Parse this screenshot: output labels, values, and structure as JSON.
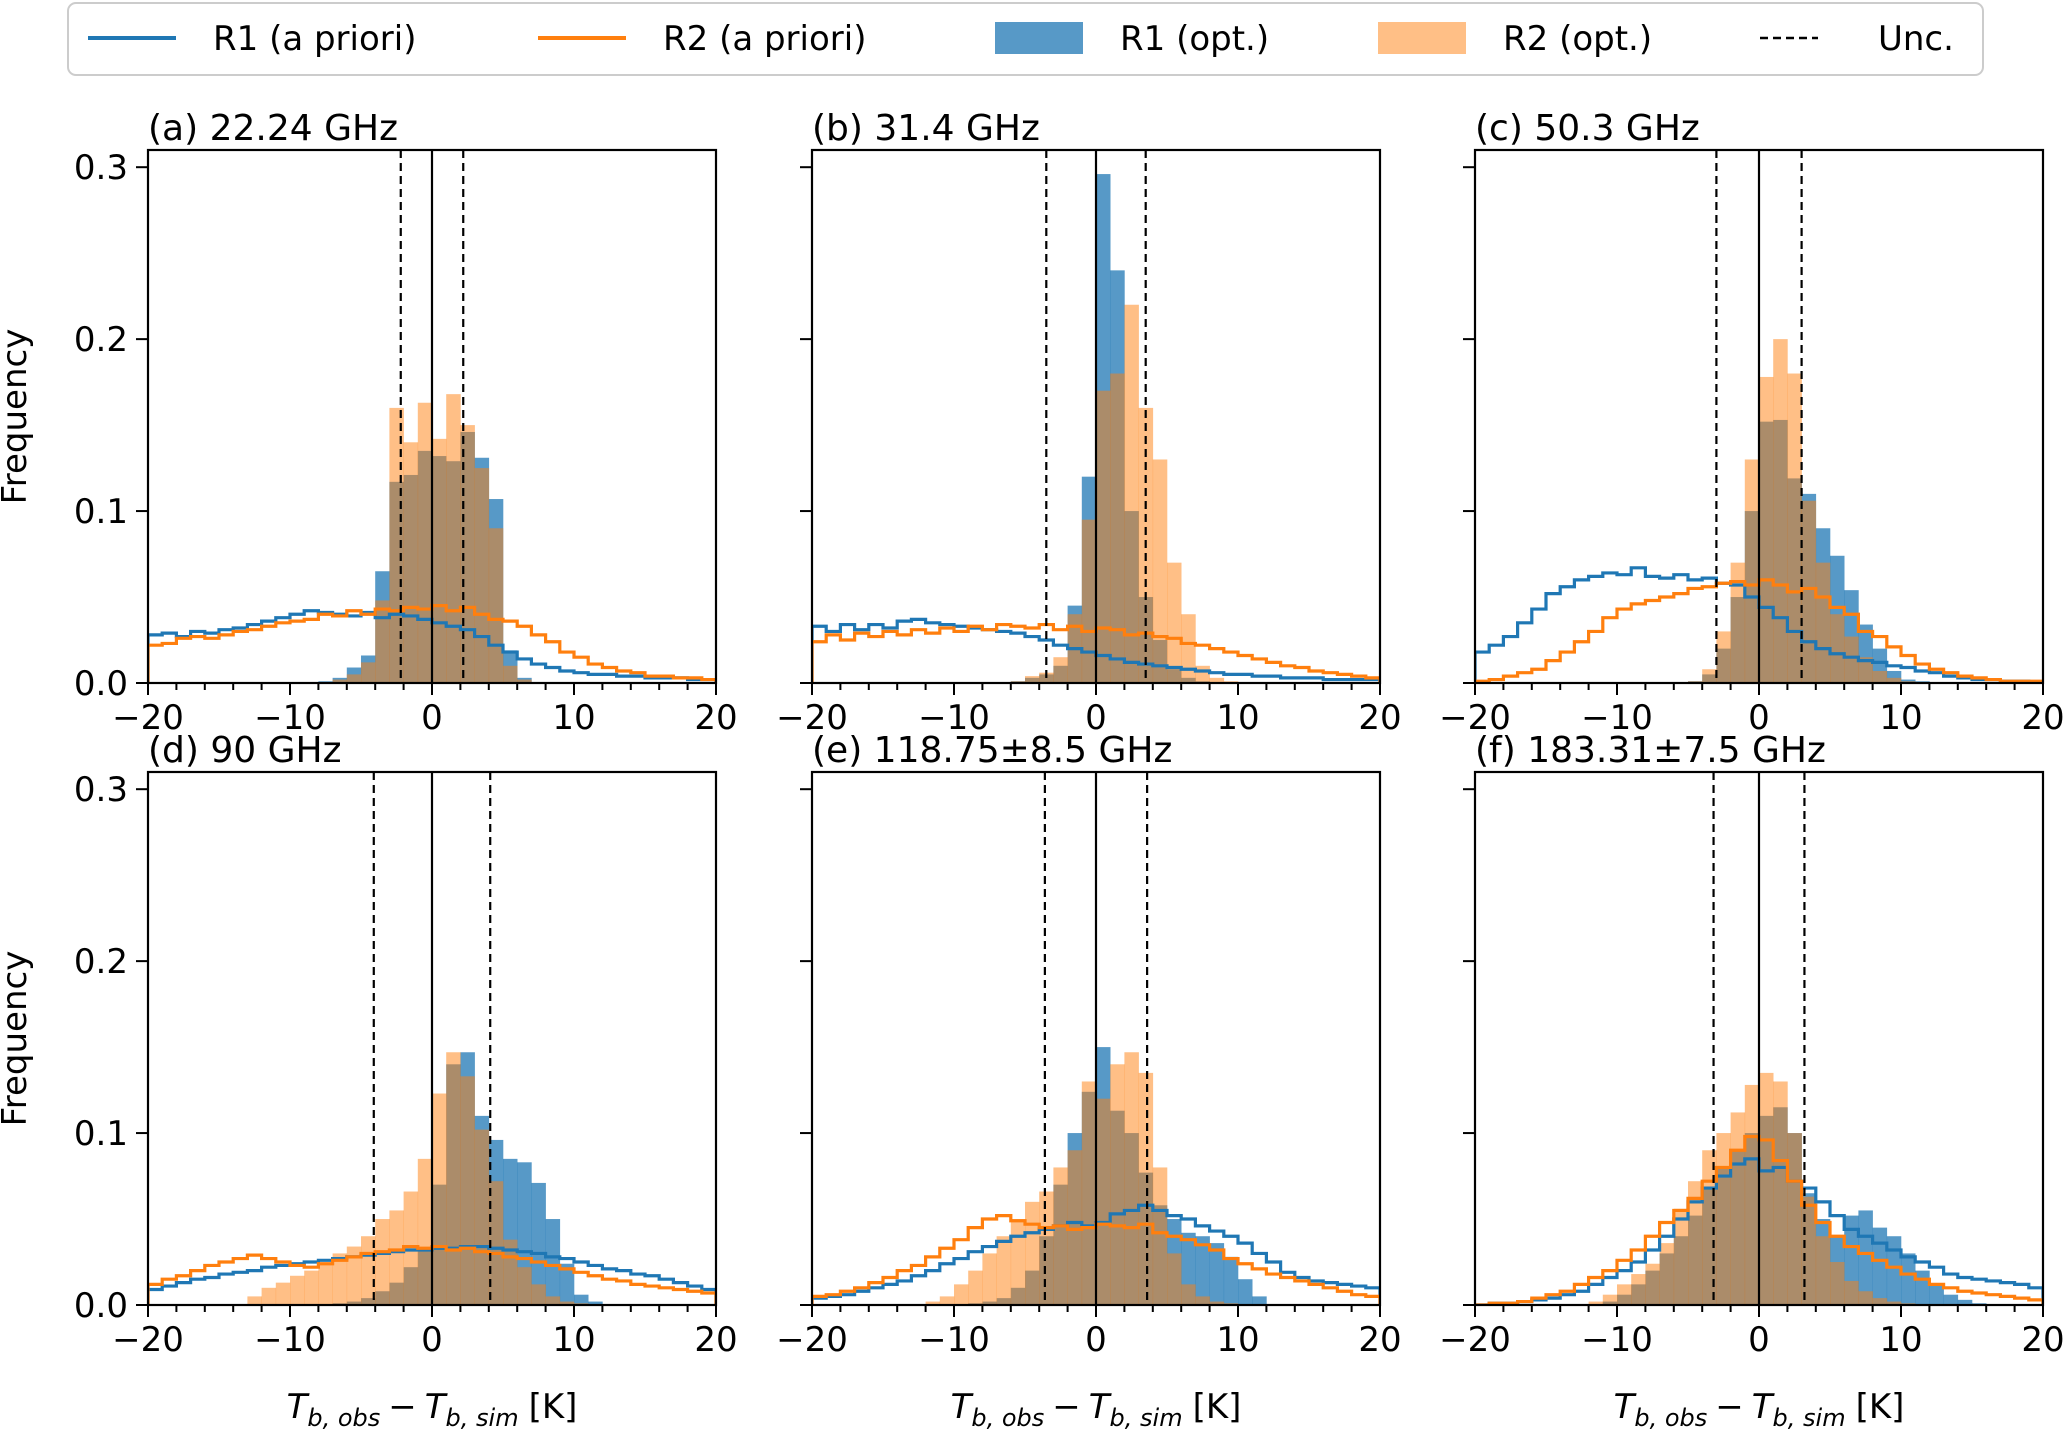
{
  "chart_data": {
    "type": "histogram-grid",
    "bin_width": 1,
    "x_range": [
      -20,
      20
    ],
    "y_range": [
      0,
      0.31
    ],
    "x_ticks": [
      "−20",
      "−10",
      "0",
      "10",
      "20"
    ],
    "y_ticks": [
      "0.0",
      "0.1",
      "0.2",
      "0.3"
    ],
    "legend": {
      "entries": [
        {
          "label": "R1 (a priori)",
          "style": "line",
          "color": "#1f77b4"
        },
        {
          "label": "R2 (a priori)",
          "style": "line",
          "color": "#ff7f0e"
        },
        {
          "label": "R1 (opt.)",
          "style": "patch",
          "color": "#1f77b4"
        },
        {
          "label": "R2 (opt.)",
          "style": "patch",
          "color": "#ff7f0e"
        },
        {
          "label": "Unc.",
          "style": "dashed",
          "color": "#000000"
        }
      ],
      "position": "top-center"
    },
    "ylabel": "Frequency",
    "xlabel_main": "T",
    "xlabel_sub1": "b, obs",
    "xlabel_minus": "−",
    "xlabel_sub2": "b, sim",
    "xlabel_unit": "[K]",
    "panels": [
      {
        "title": "(a) 22.24 GHz",
        "uncertainty": 2.2,
        "r1_apriori": [
          0.028,
          0.029,
          0.027,
          0.03,
          0.029,
          0.031,
          0.032,
          0.034,
          0.036,
          0.038,
          0.04,
          0.042,
          0.041,
          0.04,
          0.039,
          0.041,
          0.038,
          0.04,
          0.039,
          0.037,
          0.035,
          0.033,
          0.031,
          0.027,
          0.022,
          0.018,
          0.014,
          0.011,
          0.009,
          0.007,
          0.006,
          0.005,
          0.005,
          0.004,
          0.004,
          0.003,
          0.003,
          0.003,
          0.002,
          0.002
        ],
        "r2_apriori": [
          0.022,
          0.023,
          0.026,
          0.027,
          0.026,
          0.028,
          0.03,
          0.031,
          0.033,
          0.035,
          0.036,
          0.037,
          0.04,
          0.039,
          0.042,
          0.04,
          0.043,
          0.042,
          0.044,
          0.043,
          0.045,
          0.042,
          0.044,
          0.04,
          0.037,
          0.036,
          0.033,
          0.028,
          0.024,
          0.018,
          0.015,
          0.011,
          0.009,
          0.007,
          0.006,
          0.004,
          0.004,
          0.003,
          0.003,
          0.002
        ],
        "r1_opt": [
          0,
          0,
          0,
          0,
          0,
          0,
          0,
          0,
          0,
          0,
          0,
          0,
          0.001,
          0.003,
          0.009,
          0.016,
          0.065,
          0.117,
          0.121,
          0.135,
          0.132,
          0.129,
          0.146,
          0.131,
          0.107,
          0.019,
          0.003,
          0,
          0,
          0,
          0,
          0,
          0,
          0,
          0,
          0,
          0,
          0,
          0,
          0
        ],
        "r2_opt": [
          0,
          0,
          0,
          0,
          0,
          0,
          0,
          0,
          0,
          0,
          0,
          0,
          0,
          0.002,
          0.005,
          0.012,
          0.048,
          0.16,
          0.14,
          0.163,
          0.142,
          0.168,
          0.15,
          0.125,
          0.09,
          0.01,
          0.002,
          0,
          0,
          0,
          0,
          0,
          0,
          0,
          0,
          0,
          0,
          0,
          0,
          0
        ]
      },
      {
        "title": "(b) 31.4 GHz",
        "uncertainty": 3.5,
        "r1_apriori": [
          0.033,
          0.03,
          0.034,
          0.031,
          0.034,
          0.032,
          0.036,
          0.037,
          0.035,
          0.034,
          0.033,
          0.032,
          0.031,
          0.03,
          0.029,
          0.027,
          0.025,
          0.022,
          0.02,
          0.018,
          0.016,
          0.014,
          0.012,
          0.011,
          0.01,
          0.009,
          0.008,
          0.007,
          0.006,
          0.005,
          0.005,
          0.004,
          0.004,
          0.003,
          0.003,
          0.003,
          0.002,
          0.002,
          0.002,
          0.002
        ],
        "r2_apriori": [
          0.024,
          0.028,
          0.025,
          0.029,
          0.027,
          0.03,
          0.028,
          0.031,
          0.029,
          0.032,
          0.03,
          0.033,
          0.031,
          0.034,
          0.033,
          0.032,
          0.034,
          0.031,
          0.033,
          0.03,
          0.032,
          0.031,
          0.028,
          0.029,
          0.027,
          0.026,
          0.023,
          0.022,
          0.02,
          0.018,
          0.016,
          0.014,
          0.012,
          0.01,
          0.009,
          0.007,
          0.006,
          0.005,
          0.004,
          0.003
        ],
        "r1_opt": [
          0,
          0,
          0,
          0,
          0,
          0,
          0,
          0,
          0,
          0,
          0,
          0,
          0,
          0,
          0.001,
          0.003,
          0.005,
          0.01,
          0.045,
          0.12,
          0.296,
          0.24,
          0.1,
          0.05,
          0.025,
          0.008,
          0.003,
          0.001,
          0,
          0,
          0,
          0,
          0,
          0,
          0,
          0,
          0,
          0,
          0,
          0
        ],
        "r2_opt": [
          0,
          0,
          0,
          0,
          0,
          0,
          0,
          0,
          0,
          0,
          0,
          0,
          0,
          0,
          0.001,
          0.004,
          0.006,
          0.015,
          0.04,
          0.095,
          0.17,
          0.18,
          0.22,
          0.16,
          0.13,
          0.07,
          0.04,
          0.01,
          0.003,
          0.001,
          0,
          0,
          0,
          0,
          0,
          0,
          0,
          0,
          0,
          0
        ],
        "zero_line": true
      },
      {
        "title": "(c) 50.3 GHz",
        "uncertainty": 3.0,
        "r1_apriori": [
          0.018,
          0.022,
          0.027,
          0.035,
          0.043,
          0.052,
          0.056,
          0.06,
          0.062,
          0.064,
          0.063,
          0.067,
          0.062,
          0.061,
          0.063,
          0.06,
          0.061,
          0.058,
          0.057,
          0.05,
          0.044,
          0.038,
          0.03,
          0.024,
          0.02,
          0.017,
          0.015,
          0.013,
          0.012,
          0.01,
          0.009,
          0.007,
          0.006,
          0.004,
          0.003,
          0.002,
          0.002,
          0.001,
          0.001,
          0.0
        ],
        "r2_apriori": [
          0.001,
          0.002,
          0.004,
          0.006,
          0.008,
          0.013,
          0.018,
          0.024,
          0.03,
          0.038,
          0.043,
          0.046,
          0.048,
          0.05,
          0.052,
          0.055,
          0.056,
          0.058,
          0.059,
          0.057,
          0.06,
          0.057,
          0.053,
          0.055,
          0.05,
          0.044,
          0.04,
          0.03,
          0.027,
          0.021,
          0.016,
          0.011,
          0.008,
          0.006,
          0.004,
          0.003,
          0.002,
          0.001,
          0.001,
          0.001
        ],
        "r1_opt": [
          0,
          0,
          0,
          0,
          0,
          0,
          0,
          0,
          0,
          0,
          0,
          0,
          0,
          0,
          0,
          0.001,
          0.005,
          0.02,
          0.05,
          0.1,
          0.152,
          0.153,
          0.119,
          0.11,
          0.09,
          0.074,
          0.054,
          0.034,
          0.02,
          0.007,
          0.002,
          0.001,
          0,
          0,
          0,
          0,
          0,
          0,
          0,
          0
        ],
        "r2_opt": [
          0,
          0,
          0,
          0,
          0,
          0,
          0,
          0,
          0,
          0,
          0,
          0,
          0,
          0,
          0,
          0.001,
          0.008,
          0.03,
          0.07,
          0.13,
          0.178,
          0.2,
          0.18,
          0.106,
          0.07,
          0.04,
          0.027,
          0.015,
          0.007,
          0.003,
          0.001,
          0,
          0,
          0,
          0,
          0,
          0,
          0,
          0,
          0
        ],
        "zero_line": true
      },
      {
        "title": "(d) 90 GHz",
        "uncertainty": 4.1,
        "r1_apriori": [
          0.009,
          0.011,
          0.013,
          0.015,
          0.016,
          0.018,
          0.019,
          0.02,
          0.022,
          0.023,
          0.024,
          0.025,
          0.026,
          0.027,
          0.028,
          0.029,
          0.03,
          0.031,
          0.032,
          0.032,
          0.033,
          0.033,
          0.034,
          0.034,
          0.033,
          0.032,
          0.031,
          0.03,
          0.028,
          0.027,
          0.025,
          0.023,
          0.021,
          0.02,
          0.018,
          0.017,
          0.015,
          0.013,
          0.011,
          0.009
        ],
        "r2_apriori": [
          0.012,
          0.015,
          0.017,
          0.02,
          0.023,
          0.025,
          0.027,
          0.029,
          0.027,
          0.025,
          0.023,
          0.022,
          0.024,
          0.026,
          0.028,
          0.03,
          0.031,
          0.032,
          0.034,
          0.033,
          0.034,
          0.032,
          0.033,
          0.031,
          0.03,
          0.028,
          0.027,
          0.025,
          0.023,
          0.021,
          0.019,
          0.017,
          0.015,
          0.014,
          0.012,
          0.011,
          0.01,
          0.009,
          0.008,
          0.007
        ],
        "r1_opt": [
          0,
          0,
          0,
          0,
          0,
          0,
          0,
          0,
          0,
          0,
          0,
          0,
          0,
          0.001,
          0.002,
          0.004,
          0.008,
          0.013,
          0.022,
          0.032,
          0.07,
          0.14,
          0.147,
          0.11,
          0.096,
          0.085,
          0.083,
          0.071,
          0.05,
          0.024,
          0.006,
          0.002,
          0,
          0,
          0,
          0,
          0,
          0,
          0,
          0
        ],
        "r2_opt": [
          0,
          0,
          0,
          0,
          0,
          0,
          0,
          0.005,
          0.01,
          0.013,
          0.017,
          0.02,
          0.024,
          0.03,
          0.034,
          0.04,
          0.05,
          0.055,
          0.066,
          0.085,
          0.123,
          0.147,
          0.133,
          0.102,
          0.072,
          0.038,
          0.022,
          0.012,
          0.005,
          0.002,
          0.001,
          0,
          0,
          0,
          0,
          0,
          0,
          0,
          0,
          0
        ],
        "zero_line": true
      },
      {
        "title": "(e) 118.75±8.5 GHz",
        "uncertainty": 3.6,
        "r1_apriori": [
          0.004,
          0.005,
          0.006,
          0.008,
          0.01,
          0.012,
          0.014,
          0.017,
          0.02,
          0.024,
          0.027,
          0.031,
          0.034,
          0.037,
          0.04,
          0.042,
          0.044,
          0.046,
          0.048,
          0.046,
          0.048,
          0.053,
          0.055,
          0.058,
          0.055,
          0.052,
          0.05,
          0.046,
          0.043,
          0.04,
          0.036,
          0.03,
          0.025,
          0.019,
          0.016,
          0.014,
          0.013,
          0.012,
          0.011,
          0.01
        ],
        "r2_apriori": [
          0.005,
          0.006,
          0.008,
          0.01,
          0.013,
          0.016,
          0.02,
          0.023,
          0.028,
          0.033,
          0.038,
          0.045,
          0.05,
          0.052,
          0.049,
          0.047,
          0.045,
          0.046,
          0.044,
          0.045,
          0.047,
          0.046,
          0.045,
          0.047,
          0.042,
          0.04,
          0.038,
          0.035,
          0.032,
          0.027,
          0.024,
          0.021,
          0.018,
          0.016,
          0.014,
          0.012,
          0.01,
          0.008,
          0.006,
          0.005
        ],
        "r1_opt": [
          0,
          0,
          0,
          0,
          0,
          0,
          0,
          0,
          0,
          0,
          0,
          0.001,
          0.002,
          0.004,
          0.01,
          0.02,
          0.04,
          0.07,
          0.1,
          0.124,
          0.15,
          0.113,
          0.1,
          0.077,
          0.058,
          0.05,
          0.042,
          0.04,
          0.036,
          0.028,
          0.015,
          0.005,
          0,
          0,
          0,
          0,
          0,
          0,
          0,
          0
        ],
        "r2_opt": [
          0,
          0,
          0,
          0,
          0,
          0,
          0,
          0,
          0.002,
          0.005,
          0.012,
          0.02,
          0.03,
          0.04,
          0.05,
          0.06,
          0.066,
          0.08,
          0.09,
          0.13,
          0.12,
          0.14,
          0.147,
          0.135,
          0.08,
          0.03,
          0.012,
          0.005,
          0.002,
          0.001,
          0,
          0,
          0,
          0,
          0,
          0,
          0,
          0,
          0,
          0
        ],
        "zero_line": true
      },
      {
        "title": "(f) 183.31±7.5 GHz",
        "uncertainty": 3.2,
        "r1_apriori": [
          0.0,
          0.001,
          0.001,
          0.002,
          0.003,
          0.004,
          0.006,
          0.008,
          0.012,
          0.016,
          0.02,
          0.025,
          0.032,
          0.04,
          0.05,
          0.06,
          0.068,
          0.075,
          0.082,
          0.085,
          0.078,
          0.08,
          0.072,
          0.068,
          0.06,
          0.052,
          0.044,
          0.04,
          0.036,
          0.032,
          0.028,
          0.025,
          0.022,
          0.018,
          0.016,
          0.015,
          0.014,
          0.013,
          0.012,
          0.01
        ],
        "r2_apriori": [
          0.0,
          0.001,
          0.001,
          0.002,
          0.004,
          0.006,
          0.008,
          0.012,
          0.016,
          0.02,
          0.026,
          0.032,
          0.04,
          0.048,
          0.055,
          0.062,
          0.072,
          0.08,
          0.09,
          0.098,
          0.096,
          0.084,
          0.072,
          0.058,
          0.048,
          0.04,
          0.034,
          0.03,
          0.026,
          0.022,
          0.018,
          0.015,
          0.012,
          0.01,
          0.008,
          0.007,
          0.006,
          0.005,
          0.004,
          0.003
        ],
        "r1_opt": [
          0,
          0,
          0,
          0,
          0,
          0,
          0,
          0,
          0,
          0.002,
          0.006,
          0.012,
          0.02,
          0.03,
          0.04,
          0.052,
          0.068,
          0.08,
          0.09,
          0.1,
          0.11,
          0.115,
          0.1,
          0.065,
          0.05,
          0.04,
          0.052,
          0.055,
          0.045,
          0.04,
          0.03,
          0.02,
          0.012,
          0.006,
          0.003,
          0.001,
          0,
          0,
          0,
          0
        ],
        "r2_opt": [
          0,
          0,
          0,
          0,
          0,
          0,
          0,
          0,
          0.002,
          0.006,
          0.012,
          0.018,
          0.024,
          0.036,
          0.056,
          0.072,
          0.09,
          0.1,
          0.112,
          0.128,
          0.135,
          0.13,
          0.1,
          0.063,
          0.04,
          0.025,
          0.014,
          0.008,
          0.004,
          0.002,
          0.001,
          0,
          0,
          0,
          0,
          0,
          0,
          0,
          0,
          0
        ],
        "zero_line": true
      }
    ]
  }
}
